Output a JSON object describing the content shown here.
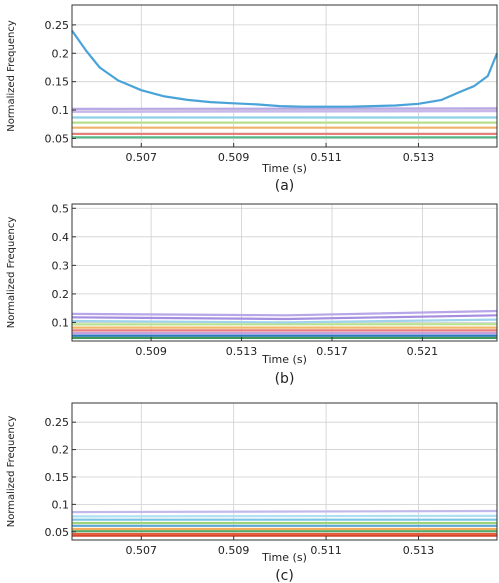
{
  "chart_data": [
    {
      "type": "line",
      "panel_label": "(a)",
      "xlabel": "Time (s)",
      "ylabel": "Normalized Frequency",
      "xlim": [
        0.5055,
        0.5147
      ],
      "ylim": [
        0.035,
        0.285
      ],
      "xticks": [
        0.507,
        0.509,
        0.511,
        0.513
      ],
      "yticks": [
        0.05,
        0.1,
        0.15,
        0.2,
        0.25
      ],
      "grid": true,
      "series": [
        {
          "color": "#4aa3d8",
          "x": [
            0.5055,
            0.5058,
            0.5061,
            0.5065,
            0.507,
            0.5075,
            0.508,
            0.5085,
            0.509,
            0.5095,
            0.51,
            0.5105,
            0.511,
            0.5115,
            0.512,
            0.5125,
            0.513,
            0.5135,
            0.5139,
            0.5142,
            0.5145,
            0.5147
          ],
          "y": [
            0.24,
            0.205,
            0.175,
            0.152,
            0.135,
            0.124,
            0.118,
            0.114,
            0.112,
            0.11,
            0.107,
            0.106,
            0.106,
            0.106,
            0.107,
            0.108,
            0.111,
            0.118,
            0.132,
            0.142,
            0.16,
            0.2
          ]
        },
        {
          "color": "#b9a8e6",
          "x": [
            0.5055,
            0.5147
          ],
          "y": [
            0.102,
            0.103
          ]
        },
        {
          "color": "#c8b6ef",
          "x": [
            0.5055,
            0.5147
          ],
          "y": [
            0.097,
            0.098
          ]
        },
        {
          "color": "#8fd0e6",
          "x": [
            0.5055,
            0.5147
          ],
          "y": [
            0.087,
            0.087
          ]
        },
        {
          "color": "#b7e08a",
          "x": [
            0.5055,
            0.5147
          ],
          "y": [
            0.078,
            0.078
          ]
        },
        {
          "color": "#f0b26a",
          "x": [
            0.5055,
            0.5147
          ],
          "y": [
            0.069,
            0.069
          ]
        },
        {
          "color": "#e2807a",
          "x": [
            0.5055,
            0.5147
          ],
          "y": [
            0.058,
            0.058
          ]
        },
        {
          "color": "#57b886",
          "x": [
            0.5055,
            0.5147
          ],
          "y": [
            0.052,
            0.052
          ]
        }
      ]
    },
    {
      "type": "line",
      "panel_label": "(b)",
      "xlabel": "Time (s)",
      "ylabel": "Normalized Frequency",
      "xlim": [
        0.5055,
        0.5243
      ],
      "ylim": [
        0.035,
        0.515
      ],
      "xticks": [
        0.509,
        0.513,
        0.517,
        0.521
      ],
      "yticks": [
        0.1,
        0.2,
        0.3,
        0.4,
        0.5
      ],
      "grid": true,
      "series": [
        {
          "color": "#b7a6e8",
          "x": [
            0.5055,
            0.515,
            0.5243
          ],
          "y": [
            0.13,
            0.125,
            0.14
          ]
        },
        {
          "color": "#a58ee0",
          "x": [
            0.5055,
            0.515,
            0.5243
          ],
          "y": [
            0.118,
            0.112,
            0.125
          ]
        },
        {
          "color": "#9fd3ec",
          "x": [
            0.5055,
            0.515,
            0.5243
          ],
          "y": [
            0.105,
            0.1,
            0.11
          ]
        },
        {
          "color": "#b8e28f",
          "x": [
            0.5055,
            0.5243
          ],
          "y": [
            0.093,
            0.094
          ]
        },
        {
          "color": "#f3b769",
          "x": [
            0.5055,
            0.5243
          ],
          "y": [
            0.082,
            0.082
          ]
        },
        {
          "color": "#e6807a",
          "x": [
            0.5055,
            0.5243
          ],
          "y": [
            0.072,
            0.072
          ]
        },
        {
          "color": "#c9a0dc",
          "x": [
            0.5055,
            0.5243
          ],
          "y": [
            0.063,
            0.063
          ]
        },
        {
          "color": "#2f78c4",
          "x": [
            0.5055,
            0.5243
          ],
          "y": [
            0.054,
            0.054
          ]
        },
        {
          "color": "#3f9a5a",
          "x": [
            0.5055,
            0.5243
          ],
          "y": [
            0.046,
            0.046
          ]
        }
      ]
    },
    {
      "type": "line",
      "panel_label": "(c)",
      "xlabel": "Time (s)",
      "ylabel": "Normalized Frequency",
      "xlim": [
        0.5055,
        0.5147
      ],
      "ylim": [
        0.035,
        0.285
      ],
      "xticks": [
        0.507,
        0.509,
        0.511,
        0.513
      ],
      "yticks": [
        0.05,
        0.1,
        0.15,
        0.2,
        0.25
      ],
      "grid": true,
      "series": [
        {
          "color": "#c3b8ea",
          "x": [
            0.5055,
            0.5147
          ],
          "y": [
            0.086,
            0.088
          ]
        },
        {
          "color": "#aee0f1",
          "x": [
            0.5055,
            0.5147
          ],
          "y": [
            0.078,
            0.079
          ]
        },
        {
          "color": "#7bc4e6",
          "x": [
            0.5055,
            0.5147
          ],
          "y": [
            0.072,
            0.072
          ]
        },
        {
          "color": "#9fd47a",
          "x": [
            0.5055,
            0.5147
          ],
          "y": [
            0.066,
            0.066
          ]
        },
        {
          "color": "#5aa6d6",
          "x": [
            0.5055,
            0.5147
          ],
          "y": [
            0.061,
            0.061
          ]
        },
        {
          "color": "#f2ad5e",
          "x": [
            0.5055,
            0.5147
          ],
          "y": [
            0.055,
            0.055
          ]
        },
        {
          "color": "#4fae6a",
          "x": [
            0.5055,
            0.5147
          ],
          "y": [
            0.051,
            0.051
          ]
        },
        {
          "color": "#e85c3c",
          "x": [
            0.5055,
            0.5147
          ],
          "y": [
            0.046,
            0.046
          ]
        },
        {
          "color": "#d2452f",
          "x": [
            0.5055,
            0.5147
          ],
          "y": [
            0.043,
            0.043
          ]
        }
      ]
    }
  ]
}
